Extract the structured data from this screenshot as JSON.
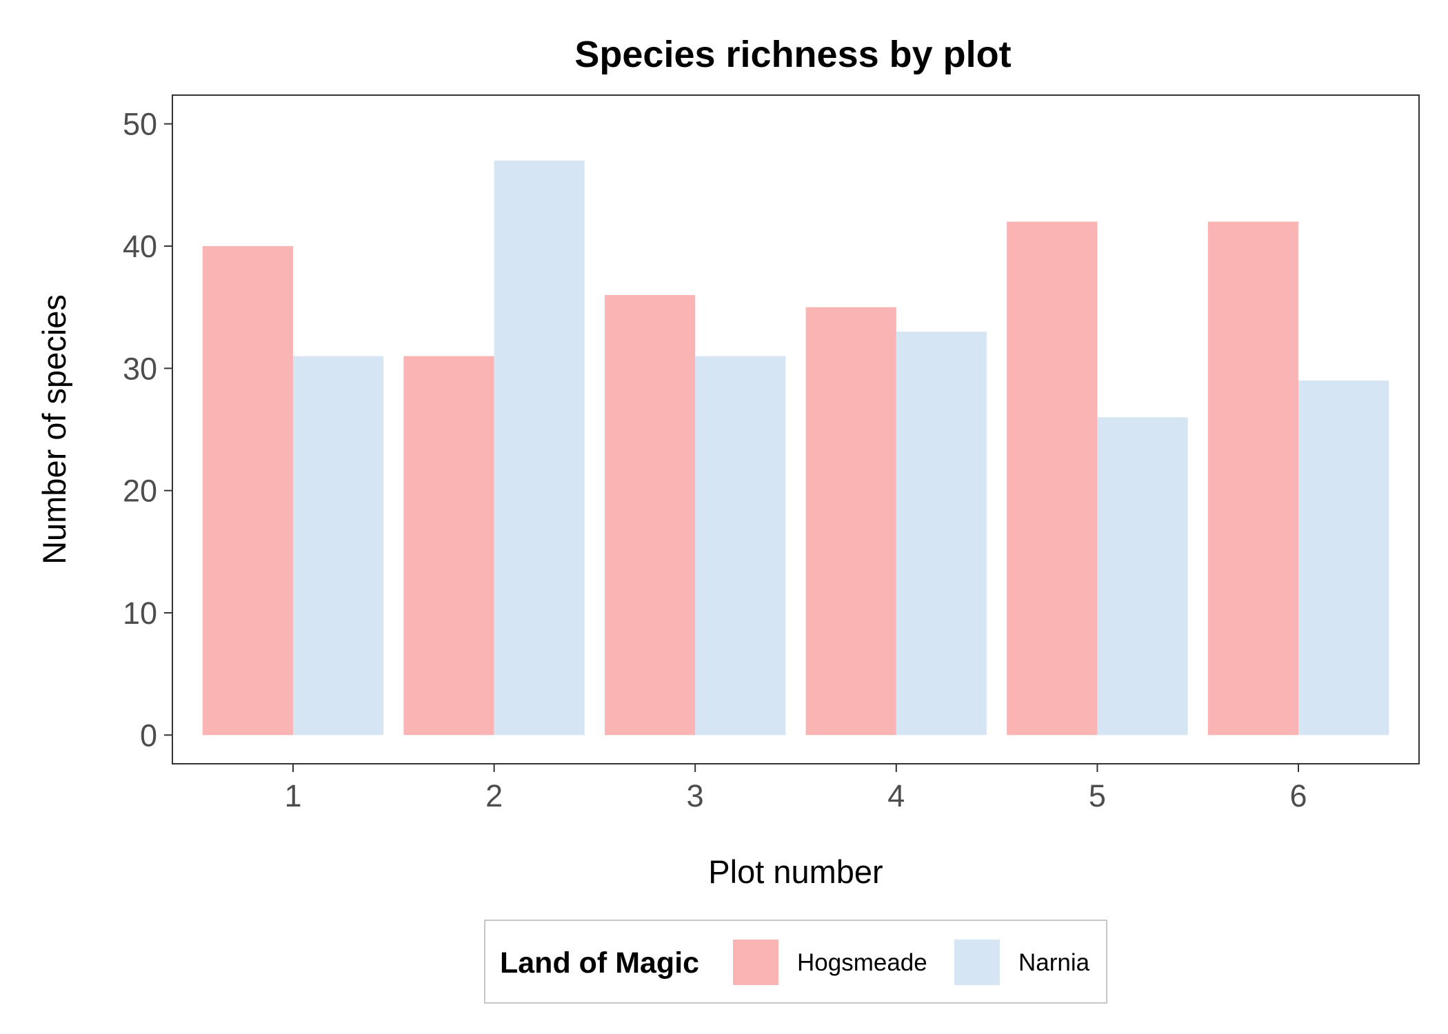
{
  "chart_data": {
    "type": "bar",
    "title": "Species richness by plot",
    "xlabel": "Plot number",
    "ylabel": "Number of species",
    "categories": [
      "1",
      "2",
      "3",
      "4",
      "5",
      "6"
    ],
    "series": [
      {
        "name": "Hogsmeade",
        "color": "#fbb4b4",
        "values": [
          40,
          31,
          36,
          35,
          42,
          42
        ]
      },
      {
        "name": "Narnia",
        "color": "#d6e5f4",
        "values": [
          31,
          47,
          31,
          33,
          26,
          29
        ]
      }
    ],
    "ylim": [
      -2.35,
      52.35
    ],
    "yticks": [
      "0",
      "10",
      "20",
      "30",
      "40",
      "50"
    ],
    "grid": false,
    "legend": {
      "title": "Land of Magic",
      "position": "bottom"
    }
  }
}
